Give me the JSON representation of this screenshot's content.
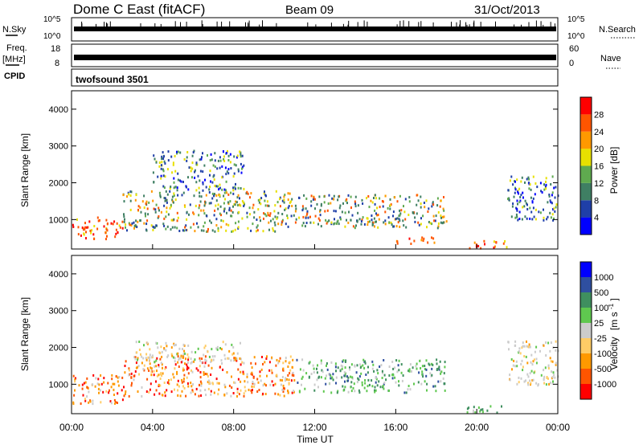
{
  "header": {
    "title": "Dome C East (fitACF)",
    "beam": "Beam 09",
    "date": "31/Oct/2013"
  },
  "strip_nsky": {
    "left_label": "N.Sky",
    "right_label": "N.Search",
    "left_ticks": [
      "10^5",
      "10^0"
    ],
    "right_ticks": [
      "10^5",
      "10^0"
    ]
  },
  "strip_freq": {
    "left_label": "Freq.",
    "left_unit": "[MHz]",
    "right_label": "Nave",
    "left_ticks": [
      "18",
      "8"
    ],
    "right_ticks": [
      "60",
      "0"
    ]
  },
  "cpid": {
    "label": "CPID",
    "value": "twofsound 3501"
  },
  "chart_data": [
    {
      "type": "heatmap",
      "panel": "power",
      "ylabel": "Slant Range [km]",
      "yticks": [
        "4000",
        "3000",
        "2000",
        "1000"
      ],
      "ylim": [
        200,
        4500
      ],
      "xlim": [
        0,
        24
      ],
      "colorbar": {
        "label": "Power [dB]",
        "ticks": [
          "28",
          "24",
          "20",
          "16",
          "12",
          "8",
          "4"
        ],
        "colors": [
          "#0000ff",
          "#1f3fa8",
          "#3f7f63",
          "#5faa4f",
          "#e8e000",
          "#ff9900",
          "#ff5500",
          "#ff0000"
        ]
      },
      "echo_regions": [
        {
          "t_start": 0.0,
          "t_end": 2.5,
          "range_low": 500,
          "range_high": 1100,
          "level": "high"
        },
        {
          "t_start": 2.5,
          "t_end": 11.0,
          "range_low": 700,
          "range_high": 1800,
          "level": "medium"
        },
        {
          "t_start": 4.0,
          "t_end": 8.5,
          "range_low": 1800,
          "range_high": 2900,
          "level": "low"
        },
        {
          "t_start": 11.0,
          "t_end": 18.5,
          "range_low": 800,
          "range_high": 1700,
          "level": "medium"
        },
        {
          "t_start": 16.0,
          "t_end": 18.0,
          "range_low": 350,
          "range_high": 550,
          "level": "high"
        },
        {
          "t_start": 19.5,
          "t_end": 21.5,
          "range_low": 250,
          "range_high": 450,
          "level": "high"
        },
        {
          "t_start": 21.5,
          "t_end": 24.0,
          "range_low": 1000,
          "range_high": 2200,
          "level": "low"
        }
      ]
    },
    {
      "type": "heatmap",
      "panel": "velocity",
      "ylabel": "Slant Range [km]",
      "xlabel": "Time UT",
      "xticks": [
        "00:00",
        "04:00",
        "08:00",
        "12:00",
        "16:00",
        "20:00",
        "00:00"
      ],
      "xtick_hours": [
        0,
        4,
        8,
        12,
        16,
        20,
        24
      ],
      "yticks": [
        "4000",
        "3000",
        "2000",
        "1000"
      ],
      "ylim": [
        200,
        4500
      ],
      "xlim": [
        0,
        24
      ],
      "colorbar": {
        "label": "Velocity",
        "unit": "[m s",
        "unit_exponent": "-1",
        "unit_close": "]",
        "ticks": [
          "1000",
          "500",
          "100",
          "25",
          "-25",
          "-100",
          "-500",
          "-1000"
        ],
        "colors": [
          "#ff0000",
          "#ff5500",
          "#ff9900",
          "#ffcc66",
          "#cccccc",
          "#5fc84f",
          "#3f8f5f",
          "#2f4fa0",
          "#0000ff"
        ]
      },
      "echo_regions": [
        {
          "t_start": 0.0,
          "t_end": 2.5,
          "range_low": 500,
          "range_high": 1300,
          "level": "negative"
        },
        {
          "t_start": 2.5,
          "t_end": 11.0,
          "range_low": 700,
          "range_high": 1800,
          "level": "negative"
        },
        {
          "t_start": 3.0,
          "t_end": 8.5,
          "range_low": 1600,
          "range_high": 2200,
          "level": "zero"
        },
        {
          "t_start": 11.0,
          "t_end": 18.5,
          "range_low": 800,
          "range_high": 1700,
          "level": "positive"
        },
        {
          "t_start": 19.5,
          "t_end": 21.5,
          "range_low": 250,
          "range_high": 450,
          "level": "positive"
        },
        {
          "t_start": 21.5,
          "t_end": 24.0,
          "range_low": 1000,
          "range_high": 2200,
          "level": "zero"
        }
      ]
    }
  ]
}
